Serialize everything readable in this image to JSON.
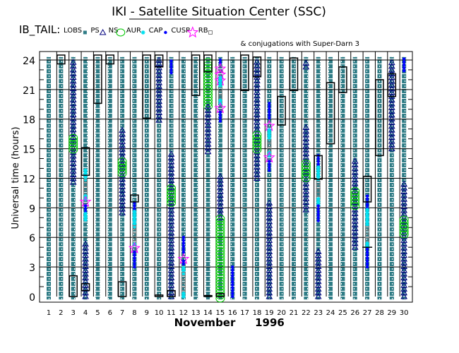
{
  "title": "IKI - Satellite Situation Center (SSC)",
  "satellite_label": "IB_TAIL:",
  "legend": [
    {
      "label": "LOBS",
      "symbol": "square_teal"
    },
    {
      "label": "PS",
      "symbol": "triangle"
    },
    {
      "label": "NS",
      "symbol": "circle"
    },
    {
      "label": "AUR",
      "symbol": "asterisk"
    },
    {
      "label": "CAP",
      "symbol": "dot"
    },
    {
      "label": "CUSP",
      "symbol": "star"
    },
    {
      "label": "RB",
      "symbol": "square_gray"
    }
  ],
  "subtitle": "& conjugations with Super-Darn 3",
  "colors": {
    "square_teal": "#2f7c86",
    "triangle": "#00007f",
    "circle": "#00c800",
    "asterisk": "#00e0f0",
    "dot": "#0000ff",
    "star": "#ff00ff",
    "square_gray": "#808080",
    "conjugation_box": "#000000"
  },
  "chart_data": {
    "type": "scatter",
    "xlabel_month": "November",
    "xlabel_year": "1996",
    "ylabel": "Universal time (hours)",
    "xlim": [
      1,
      30
    ],
    "ylim": [
      0,
      24
    ],
    "yticks": [
      "0",
      "3",
      "6",
      "9",
      "12",
      "15",
      "18",
      "21",
      "24"
    ],
    "xticks": [
      "1",
      "2",
      "3",
      "4",
      "5",
      "6",
      "7",
      "8",
      "9",
      "10",
      "11",
      "12",
      "13",
      "14",
      "15",
      "16",
      "17",
      "18",
      "19",
      "20",
      "21",
      "22",
      "23",
      "24",
      "25",
      "26",
      "27",
      "28",
      "29",
      "30"
    ],
    "grid": true,
    "background_region": "square_teal",
    "days": [
      {
        "day": 1,
        "segments": [],
        "boxes": []
      },
      {
        "day": 2,
        "segments": [],
        "boxes": [
          [
            23.6,
            24.5
          ]
        ]
      },
      {
        "day": 3,
        "segments": [
          {
            "s": "triangle",
            "from": 11.6,
            "to": 24
          },
          {
            "s": "circle",
            "from": 14.9,
            "to": 16.2
          }
        ],
        "boxes": [
          [
            0,
            2.1
          ]
        ]
      },
      {
        "day": 4,
        "segments": [
          {
            "s": "asterisk",
            "from": 11.9,
            "to": 13
          },
          {
            "s": "square_gray",
            "from": 10.2,
            "to": 11.9
          },
          {
            "s": "asterisk",
            "from": 9.9,
            "to": 10.2
          },
          {
            "s": "star",
            "at": 9.6
          },
          {
            "s": "dot",
            "from": 8.6,
            "to": 9.4
          },
          {
            "s": "asterisk",
            "from": 7.8,
            "to": 8.6
          },
          {
            "s": "triangle",
            "from": 0,
            "to": 5.6
          }
        ],
        "boxes": [
          [
            12.3,
            15.1
          ],
          [
            0.6,
            1.3
          ]
        ]
      },
      {
        "day": 5,
        "segments": [],
        "boxes": [
          [
            19.6,
            24.5
          ]
        ]
      },
      {
        "day": 6,
        "segments": [],
        "boxes": [
          [
            23.6,
            24.5
          ]
        ]
      },
      {
        "day": 7,
        "segments": [
          {
            "s": "triangle",
            "from": 8.5,
            "to": 16.9
          },
          {
            "s": "circle",
            "from": 12.5,
            "to": 13.9
          }
        ],
        "boxes": [
          [
            0,
            1.5
          ]
        ]
      },
      {
        "day": 8,
        "segments": [
          {
            "s": "dot",
            "from": 8.6,
            "to": 9.5
          },
          {
            "s": "asterisk",
            "from": 7.1,
            "to": 8.6
          },
          {
            "s": "square_gray",
            "from": 5.5,
            "to": 7.1
          },
          {
            "s": "asterisk",
            "from": 5.3,
            "to": 5.5
          },
          {
            "s": "star",
            "at": 4.9
          },
          {
            "s": "dot",
            "from": 3,
            "to": 4.5
          }
        ],
        "boxes": [
          [
            9.6,
            10.3
          ]
        ]
      },
      {
        "day": 9,
        "segments": [],
        "boxes": [
          [
            18.1,
            24.5
          ]
        ]
      },
      {
        "day": 10,
        "segments": [
          {
            "s": "triangle",
            "from": 17.9,
            "to": 24
          }
        ],
        "boxes": [
          [
            23.3,
            24.5
          ],
          [
            0,
            0.15
          ]
        ]
      },
      {
        "day": 11,
        "segments": [
          {
            "s": "dot",
            "from": 22.7,
            "to": 24
          },
          {
            "s": "triangle",
            "from": 0,
            "to": 14.5
          },
          {
            "s": "circle",
            "from": 9.5,
            "to": 11
          }
        ],
        "boxes": [
          [
            0,
            0.6
          ]
        ]
      },
      {
        "day": 12,
        "segments": [
          {
            "s": "dot",
            "from": 4.5,
            "to": 6.1
          },
          {
            "s": "star",
            "at": 3.8
          },
          {
            "s": "dot",
            "from": 3.3,
            "to": 3.6
          },
          {
            "s": "asterisk",
            "from": 2.3,
            "to": 3.1
          },
          {
            "s": "square_gray",
            "from": 0.4,
            "to": 2.3
          },
          {
            "s": "asterisk",
            "from": 0,
            "to": 0.4
          }
        ],
        "boxes": []
      },
      {
        "day": 13,
        "segments": [],
        "boxes": [
          [
            20.4,
            24.5
          ]
        ]
      },
      {
        "day": 14,
        "segments": [
          {
            "s": "circle",
            "from": 19.3,
            "to": 24
          },
          {
            "s": "triangle",
            "from": 14.7,
            "to": 19.3
          }
        ],
        "boxes": [
          [
            22.8,
            24.5
          ],
          [
            0,
            0.1
          ]
        ]
      },
      {
        "day": 15,
        "segments": [
          {
            "s": "dot",
            "from": 23.7,
            "to": 24
          },
          {
            "s": "star",
            "from": 21.9,
            "to": 23.6
          },
          {
            "s": "asterisk",
            "from": 21.3,
            "to": 22.2
          },
          {
            "s": "square_gray",
            "from": 19.9,
            "to": 21.3
          },
          {
            "s": "asterisk",
            "from": 19.6,
            "to": 19.9
          },
          {
            "s": "star",
            "at": 19.1
          },
          {
            "s": "dot",
            "from": 17.8,
            "to": 18.7
          },
          {
            "s": "triangle",
            "from": 8,
            "to": 12.4
          },
          {
            "s": "circle",
            "from": -0.2,
            "to": 7.9
          }
        ],
        "boxes": [
          [
            0,
            0.3
          ]
        ]
      },
      {
        "day": 16,
        "segments": [
          {
            "s": "dot",
            "from": 0,
            "to": 3
          }
        ],
        "boxes": []
      },
      {
        "day": 17,
        "segments": [],
        "boxes": [
          [
            20.9,
            24.5
          ]
        ]
      },
      {
        "day": 18,
        "segments": [
          {
            "s": "triangle",
            "from": 12,
            "to": 24
          },
          {
            "s": "circle",
            "from": 14.9,
            "to": 16.6
          }
        ],
        "boxes": [
          [
            22.3,
            24.3
          ]
        ]
      },
      {
        "day": 19,
        "segments": [
          {
            "s": "dot",
            "from": 18.1,
            "to": 19.6
          },
          {
            "s": "star",
            "at": 17.3
          },
          {
            "s": "asterisk",
            "from": 16,
            "to": 17
          },
          {
            "s": "square_gray",
            "from": 14.6,
            "to": 16
          },
          {
            "s": "asterisk",
            "from": 14.3,
            "to": 14.6
          },
          {
            "s": "star",
            "at": 14.1
          },
          {
            "s": "dot",
            "from": 12.8,
            "to": 13.8
          },
          {
            "s": "triangle",
            "from": 0,
            "to": 9.5
          }
        ],
        "boxes": []
      },
      {
        "day": 20,
        "segments": [],
        "boxes": [
          [
            17.4,
            20.3
          ]
        ]
      },
      {
        "day": 21,
        "segments": [],
        "boxes": [
          [
            20.9,
            24.2
          ]
        ]
      },
      {
        "day": 22,
        "segments": [
          {
            "s": "triangle",
            "from": 23.3,
            "to": 24
          },
          {
            "s": "triangle",
            "from": 8.8,
            "to": 17.4
          },
          {
            "s": "circle",
            "from": 12,
            "to": 13.6
          }
        ],
        "boxes": []
      },
      {
        "day": 23,
        "segments": [
          {
            "s": "dot",
            "from": 13.1,
            "to": 14.4
          },
          {
            "s": "asterisk",
            "from": 11.9,
            "to": 13.1
          },
          {
            "s": "square_gray",
            "from": 10,
            "to": 11.8
          },
          {
            "s": "asterisk",
            "from": 9.3,
            "to": 10
          },
          {
            "s": "dot",
            "from": 7.7,
            "to": 9.3
          },
          {
            "s": "triangle",
            "from": 0,
            "to": 4.7
          }
        ],
        "boxes": [
          [
            11.9,
            14.3
          ]
        ]
      },
      {
        "day": 24,
        "segments": [],
        "boxes": [
          [
            15.5,
            21.7
          ]
        ]
      },
      {
        "day": 25,
        "segments": [],
        "boxes": [
          [
            20.7,
            23.3
          ]
        ]
      },
      {
        "day": 26,
        "segments": [
          {
            "s": "triangle",
            "from": 5,
            "to": 14
          },
          {
            "s": "circle",
            "from": 9.2,
            "to": 10.7
          }
        ],
        "boxes": []
      },
      {
        "day": 27,
        "segments": [
          {
            "s": "dot",
            "from": 9,
            "to": 10.2
          },
          {
            "s": "asterisk",
            "from": 7.3,
            "to": 9
          },
          {
            "s": "square_gray",
            "from": 5.4,
            "to": 7.2
          },
          {
            "s": "asterisk",
            "from": 5.1,
            "to": 5.4
          },
          {
            "s": "dot",
            "from": 3,
            "to": 4.9
          }
        ],
        "boxes": [
          [
            9.6,
            12.2
          ],
          [
            5,
            5
          ]
        ]
      },
      {
        "day": 28,
        "segments": [],
        "boxes": [
          [
            14.3,
            22
          ]
        ]
      },
      {
        "day": 29,
        "segments": [
          {
            "s": "triangle",
            "from": 15,
            "to": 24
          }
        ],
        "boxes": [
          [
            20.3,
            22.6
          ]
        ]
      },
      {
        "day": 30,
        "segments": [
          {
            "s": "dot",
            "from": 22.9,
            "to": 24.2
          },
          {
            "s": "triangle",
            "from": 0,
            "to": 11.6
          },
          {
            "s": "circle",
            "from": 6.3,
            "to": 7.9
          }
        ],
        "boxes": []
      }
    ]
  }
}
